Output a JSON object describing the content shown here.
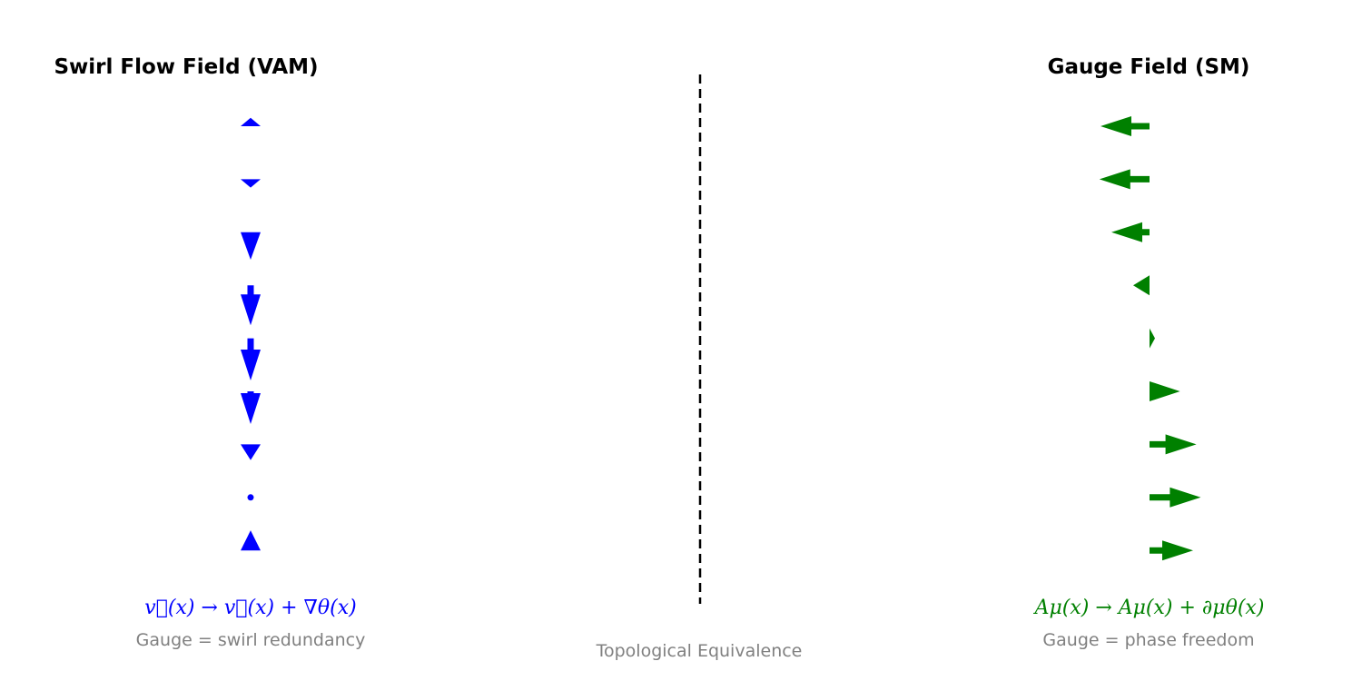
{
  "left_panel": {
    "title": "Swirl Flow Field (VAM)",
    "equation": "v⃗(x) → v⃗(x) + ∇θ(x)",
    "caption": "Gauge = swirl redundancy",
    "color": "#0000ff",
    "arrow_direction": "vertical",
    "arrow_magnitudes": [
      0.16,
      -0.16,
      -0.52,
      -0.76,
      -0.8,
      -0.62,
      -0.3,
      0,
      0.38
    ]
  },
  "right_panel": {
    "title": "Gauge Field (SM)",
    "equation": "Aμ(x) → Aμ(x) + ∂μθ(x)",
    "caption": "Gauge = phase freedom",
    "color": "#008000",
    "arrow_direction": "horizontal",
    "arrow_magnitudes": [
      -0.9,
      -0.92,
      -0.7,
      -0.3,
      0.1,
      0.56,
      0.86,
      0.94,
      0.8
    ]
  },
  "divider": {
    "caption": "Topological Equivalence",
    "style": "dashed",
    "color": "#000000"
  }
}
